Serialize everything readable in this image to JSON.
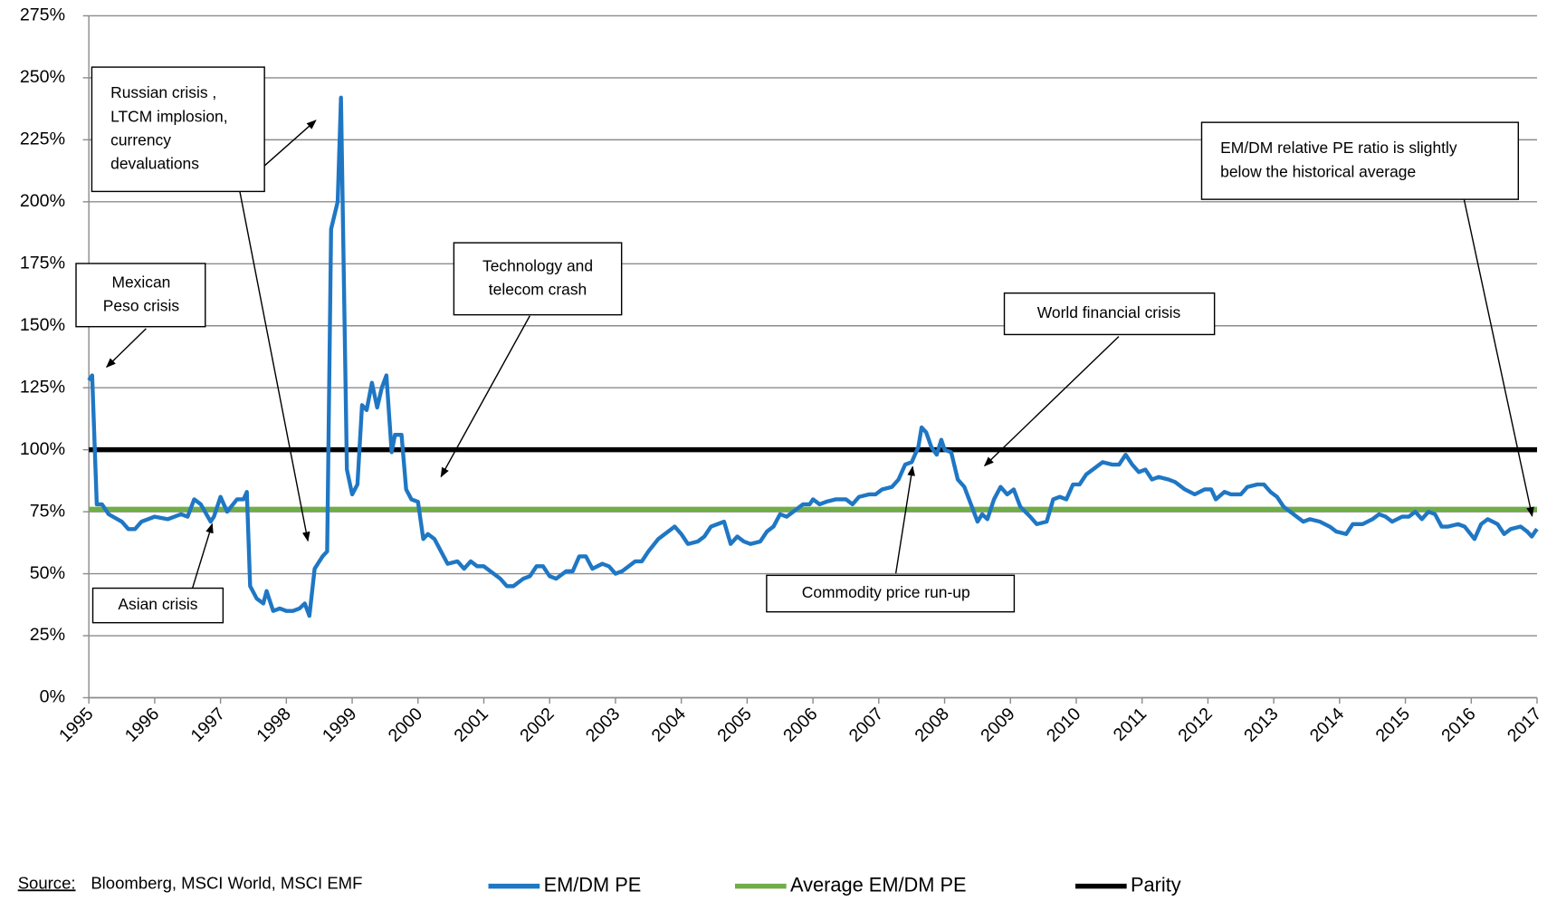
{
  "chart_data": {
    "type": "line",
    "source_label": "Source:",
    "source": "Bloomberg, MSCI World, MSCI EMF",
    "xlim": [
      1995,
      2017
    ],
    "xticks": [
      1995,
      1996,
      1997,
      1998,
      1999,
      2000,
      2001,
      2002,
      2003,
      2004,
      2005,
      2006,
      2007,
      2008,
      2009,
      2010,
      2011,
      2012,
      2013,
      2014,
      2015,
      2016,
      2017
    ],
    "ylim": [
      0,
      275
    ],
    "yticks": [
      {
        "value": 0,
        "label": "0%"
      },
      {
        "value": 25,
        "label": "25%"
      },
      {
        "value": 50,
        "label": "50%"
      },
      {
        "value": 75,
        "label": "75%"
      },
      {
        "value": 100,
        "label": "100%"
      },
      {
        "value": 125,
        "label": "125%"
      },
      {
        "value": 150,
        "label": "150%"
      },
      {
        "value": 175,
        "label": "175%"
      },
      {
        "value": 200,
        "label": "200%"
      },
      {
        "value": 225,
        "label": "225%"
      },
      {
        "value": 250,
        "label": "250%"
      },
      {
        "value": 275,
        "label": "275%"
      }
    ],
    "grid": true,
    "series": [
      {
        "name": "EM/DM PE",
        "color": "#1f77c4",
        "x": [
          1995.0,
          1995.05,
          1995.12,
          1995.2,
          1995.3,
          1995.5,
          1995.6,
          1995.7,
          1995.8,
          1996.0,
          1996.2,
          1996.4,
          1996.5,
          1996.6,
          1996.7,
          1996.85,
          1996.9,
          1997.0,
          1997.1,
          1997.25,
          1997.35,
          1997.4,
          1997.45,
          1997.55,
          1997.65,
          1997.7,
          1997.8,
          1997.9,
          1998.0,
          1998.1,
          1998.2,
          1998.28,
          1998.35,
          1998.43,
          1998.55,
          1998.62,
          1998.68,
          1998.78,
          1998.83,
          1998.92,
          1999.0,
          1999.08,
          1999.15,
          1999.22,
          1999.3,
          1999.38,
          1999.45,
          1999.52,
          1999.6,
          1999.65,
          1999.75,
          1999.82,
          1999.9,
          2000.0,
          2000.08,
          2000.15,
          2000.25,
          2000.35,
          2000.45,
          2000.6,
          2000.7,
          2000.8,
          2000.9,
          2001.0,
          2001.1,
          2001.25,
          2001.35,
          2001.45,
          2001.6,
          2001.7,
          2001.8,
          2001.9,
          2002.0,
          2002.1,
          2002.25,
          2002.35,
          2002.45,
          2002.55,
          2002.65,
          2002.8,
          2002.9,
          2003.0,
          2003.1,
          2003.2,
          2003.3,
          2003.4,
          2003.5,
          2003.65,
          2003.8,
          2003.9,
          2004.0,
          2004.1,
          2004.25,
          2004.35,
          2004.45,
          2004.55,
          2004.65,
          2004.75,
          2004.85,
          2004.95,
          2005.05,
          2005.2,
          2005.3,
          2005.4,
          2005.5,
          2005.6,
          2005.75,
          2005.85,
          2005.95,
          2006.0,
          2006.1,
          2006.2,
          2006.35,
          2006.5,
          2006.6,
          2006.7,
          2006.85,
          2006.95,
          2007.05,
          2007.2,
          2007.3,
          2007.4,
          2007.5,
          2007.6,
          2007.65,
          2007.72,
          2007.8,
          2007.88,
          2007.95,
          2008.0,
          2008.1,
          2008.2,
          2008.3,
          2008.4,
          2008.5,
          2008.57,
          2008.65,
          2008.75,
          2008.85,
          2008.95,
          2009.05,
          2009.15,
          2009.3,
          2009.4,
          2009.55,
          2009.65,
          2009.75,
          2009.85,
          2009.95,
          2010.05,
          2010.15,
          2010.3,
          2010.4,
          2010.55,
          2010.65,
          2010.75,
          2010.85,
          2010.95,
          2011.05,
          2011.15,
          2011.25,
          2011.4,
          2011.5,
          2011.65,
          2011.8,
          2011.95,
          2012.05,
          2012.12,
          2012.25,
          2012.35,
          2012.5,
          2012.6,
          2012.75,
          2012.85,
          2012.95,
          2013.05,
          2013.15,
          2013.3,
          2013.45,
          2013.55,
          2013.7,
          2013.85,
          2013.95,
          2014.1,
          2014.2,
          2014.35,
          2014.5,
          2014.6,
          2014.7,
          2014.8,
          2014.95,
          2015.05,
          2015.15,
          2015.25,
          2015.35,
          2015.45,
          2015.55,
          2015.65,
          2015.8,
          2015.9,
          2016.05,
          2016.15,
          2016.25,
          2016.4,
          2016.5,
          2016.6,
          2016.75,
          2016.85,
          2016.92,
          2016.97,
          2017.0
        ],
        "values": [
          128,
          130,
          78,
          78,
          74,
          71,
          68,
          68,
          71,
          73,
          72,
          74,
          73,
          80,
          78,
          71,
          73,
          81,
          75,
          80,
          80,
          83,
          45,
          40,
          38,
          43,
          35,
          36,
          35,
          35,
          36,
          38,
          33,
          52,
          57,
          59,
          189,
          200,
          242,
          92,
          82,
          86,
          118,
          116,
          127,
          117,
          125,
          130,
          99,
          106,
          106,
          84,
          80,
          79,
          64,
          66,
          64,
          59,
          54,
          55,
          52,
          55,
          53,
          53,
          51,
          48,
          45,
          45,
          48,
          49,
          53,
          53,
          49,
          48,
          51,
          51,
          57,
          57,
          52,
          54,
          53,
          50,
          51,
          53,
          55,
          55,
          59,
          64,
          67,
          69,
          66,
          62,
          63,
          65,
          69,
          70,
          71,
          62,
          65,
          63,
          62,
          63,
          67,
          69,
          74,
          73,
          76,
          78,
          78,
          80,
          78,
          79,
          80,
          80,
          78,
          81,
          82,
          82,
          84,
          85,
          88,
          94,
          95,
          101,
          109,
          107,
          101,
          98,
          104,
          100,
          99,
          88,
          85,
          78,
          71,
          74,
          72,
          80,
          85,
          82,
          84,
          77,
          73,
          70,
          71,
          80,
          81,
          80,
          86,
          86,
          90,
          93,
          95,
          94,
          94,
          98,
          94,
          91,
          92,
          88,
          89,
          88,
          87,
          84,
          82,
          84,
          84,
          80,
          83,
          82,
          82,
          85,
          86,
          86,
          83,
          81,
          77,
          74,
          71,
          72,
          71,
          69,
          67,
          66,
          70,
          70,
          72,
          74,
          73,
          71,
          73,
          73,
          75,
          72,
          75,
          74,
          69,
          69,
          70,
          69,
          64,
          70,
          72,
          70,
          66,
          68,
          69,
          67,
          65,
          67,
          68
        ]
      },
      {
        "name": "Average EM/DM PE",
        "color": "#70ad47",
        "x": [
          1995,
          2017
        ],
        "values": [
          76,
          76
        ]
      },
      {
        "name": "Parity",
        "color": "#000000",
        "x": [
          1995,
          2017
        ],
        "values": [
          100,
          100
        ]
      }
    ],
    "annotations": [
      {
        "text": [
          "Mexican",
          "Peso crisis"
        ]
      },
      {
        "text": [
          "Russian crisis ,",
          "LTCM implosion,",
          "currency",
          "devaluations"
        ]
      },
      {
        "text": [
          "Technology and",
          "telecom crash"
        ]
      },
      {
        "text": [
          "Asian crisis"
        ]
      },
      {
        "text": [
          "World financial crisis"
        ]
      },
      {
        "text": [
          "Commodity price run-up"
        ]
      },
      {
        "text": [
          "EM/DM  relative PE ratio is slightly",
          "below the historical average"
        ]
      }
    ]
  }
}
